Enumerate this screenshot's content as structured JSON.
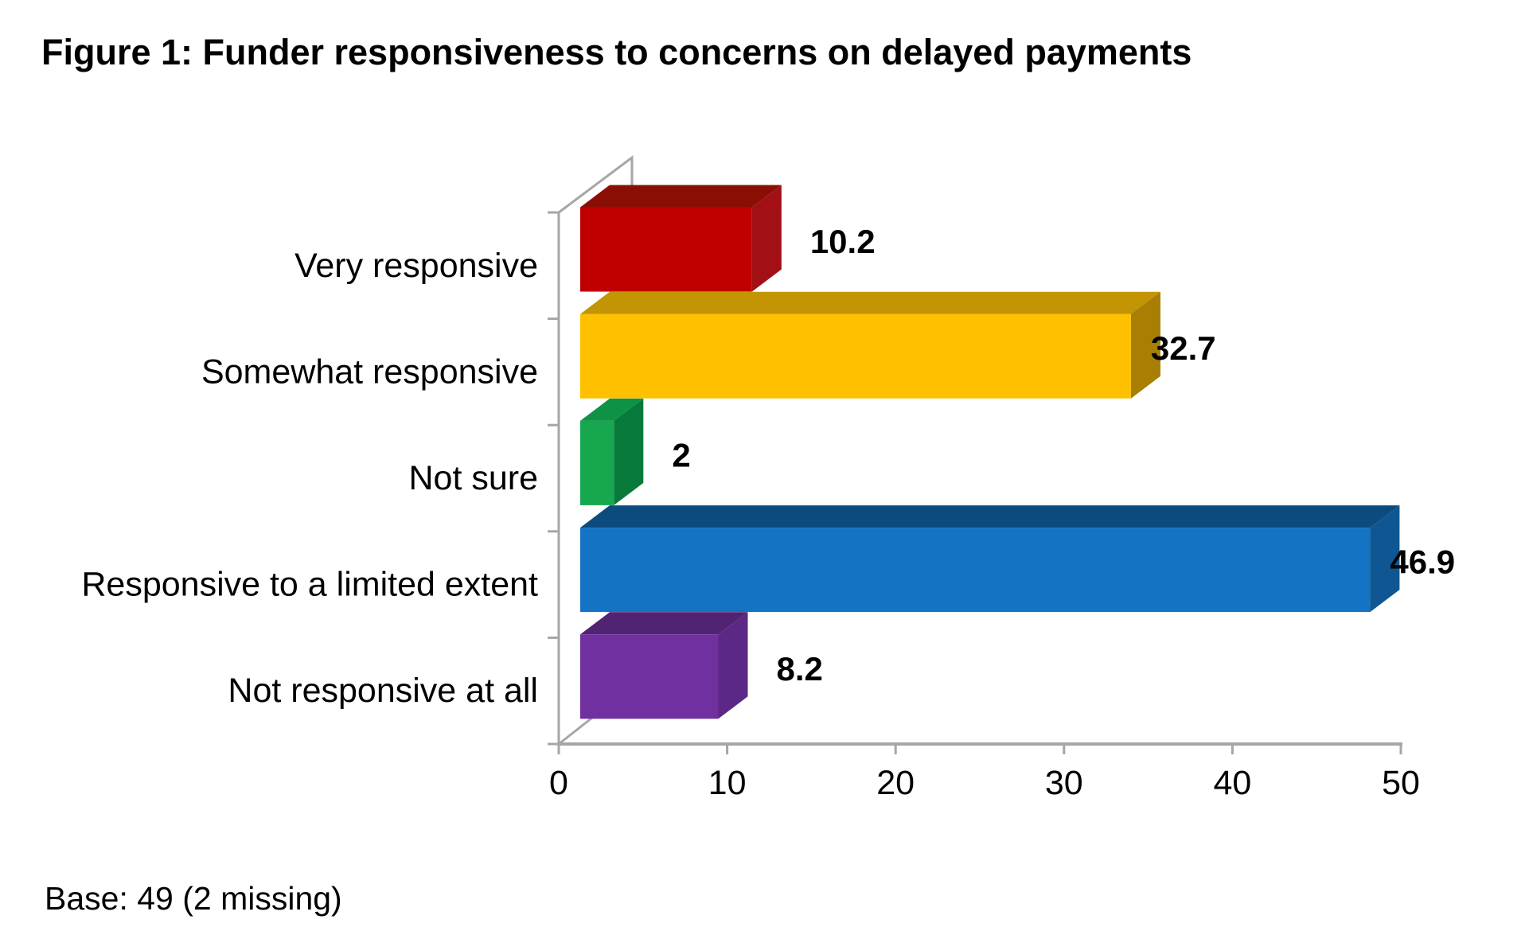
{
  "title": "Figure 1: Funder responsiveness to concerns on delayed payments",
  "base_note": "Base: 49 (2 missing)",
  "chart_data": {
    "type": "bar",
    "orientation": "horizontal",
    "projection": "3d",
    "title": "Figure 1: Funder responsiveness to concerns on delayed payments",
    "categories": [
      "Very responsive",
      "Somewhat responsive",
      "Not sure",
      "Responsive to a limited extent",
      "Not responsive at all"
    ],
    "values": [
      10.2,
      32.7,
      2,
      46.9,
      8.2
    ],
    "value_labels": [
      "10.2",
      "32.7",
      "2",
      "46.9",
      "8.2"
    ],
    "xlabel": "",
    "ylabel": "",
    "xlim": [
      0,
      50
    ],
    "x_ticks": [
      0,
      10,
      20,
      30,
      40,
      50
    ],
    "gridlines": "off",
    "legend": "none",
    "bar_colors_front": [
      "#C00000",
      "#FFC000",
      "#17A74F",
      "#1473C4",
      "#7030A0"
    ],
    "bar_colors_top": [
      "#8B0E04",
      "#C39404",
      "#0E9346",
      "#0C4B7E",
      "#512373"
    ],
    "bar_colors_side": [
      "#A21015",
      "#A87E03",
      "#077A3B",
      "#0E5793",
      "#5C2886"
    ],
    "axis_color": "#A6A6A6",
    "text_color": "#000000"
  }
}
